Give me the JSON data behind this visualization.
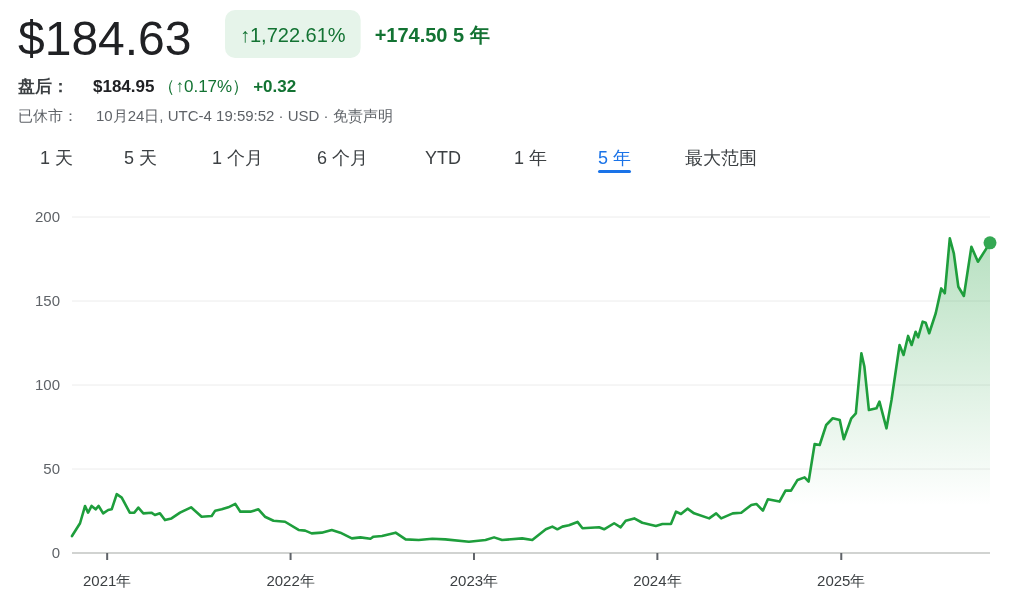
{
  "chart_data": {
    "type": "area",
    "title": "$184.63",
    "annotations": [
      "↑1,722.61%",
      "+174.50 5 年",
      "盘后：",
      "$184.95",
      "（↑0.17%）",
      "+0.32",
      "已休市：",
      "10月24日, UTC-4 19:59:52 · USD · 免责声明",
      "1 天",
      "5 天",
      "1 个月",
      "6 个月",
      "YTD",
      "1 年",
      "5 年",
      "最大范围"
    ],
    "xlim": [
      "2020-10-23",
      "2025-10-24"
    ],
    "xticks": [
      {
        "value": "2021-01-01",
        "label": "2021年"
      },
      {
        "value": "2022-01-01",
        "label": "2022年"
      },
      {
        "value": "2023-01-01",
        "label": "2023年"
      },
      {
        "value": "2024-01-01",
        "label": "2024年"
      },
      {
        "value": "2025-01-01",
        "label": "2025年"
      }
    ],
    "ylim": [
      0,
      200
    ],
    "yticks": [
      0,
      50,
      100,
      150,
      200
    ],
    "grid": "y",
    "series": [
      {
        "color": "#1e9e3c",
        "x": [
          "2020-10-23",
          "2020-11-08",
          "2020-11-18",
          "2020-11-24",
          "2020-12-01",
          "2020-12-09",
          "2020-12-15",
          "2020-12-24",
          "2021-01-03",
          "2021-01-10",
          "2021-01-20",
          "2021-01-30",
          "2021-02-15",
          "2021-02-24",
          "2021-03-04",
          "2021-03-14",
          "2021-03-30",
          "2021-04-06",
          "2021-04-16",
          "2021-04-26",
          "2021-05-09",
          "2021-05-26",
          "2021-06-17",
          "2021-07-08",
          "2021-07-28",
          "2021-08-04",
          "2021-08-17",
          "2021-08-30",
          "2021-09-13",
          "2021-09-23",
          "2021-10-13",
          "2021-10-29",
          "2021-11-11",
          "2021-11-28",
          "2021-12-21",
          "2022-01-17",
          "2022-01-30",
          "2022-02-12",
          "2022-03-04",
          "2022-03-24",
          "2022-04-10",
          "2022-05-03",
          "2022-05-20",
          "2022-06-09",
          "2022-06-15",
          "2022-07-02",
          "2022-07-29",
          "2022-08-18",
          "2022-09-13",
          "2022-10-10",
          "2022-11-05",
          "2022-12-22",
          "2023-01-24",
          "2023-02-10",
          "2023-02-26",
          "2023-04-07",
          "2023-04-27",
          "2023-05-24",
          "2023-06-06",
          "2023-06-16",
          "2023-06-26",
          "2023-07-09",
          "2023-07-26",
          "2023-08-05",
          "2023-09-07",
          "2023-09-17",
          "2023-10-07",
          "2023-10-20",
          "2023-10-30",
          "2023-11-16",
          "2023-12-02",
          "2023-12-29",
          "2024-01-11",
          "2024-01-28",
          "2024-02-07",
          "2024-02-17",
          "2024-03-01",
          "2024-03-14",
          "2024-04-13",
          "2024-04-27",
          "2024-05-07",
          "2024-05-30",
          "2024-06-16",
          "2024-07-06",
          "2024-07-16",
          "2024-07-29",
          "2024-08-08",
          "2024-08-31",
          "2024-09-12",
          "2024-09-23",
          "2024-10-06",
          "2024-10-20",
          "2024-10-28",
          "2024-11-09",
          "2024-11-19",
          "2024-12-02",
          "2024-12-15",
          "2024-12-29",
          "2025-01-06",
          "2025-01-21",
          "2025-01-30",
          "2025-02-10",
          "2025-02-16",
          "2025-02-25",
          "2025-03-12",
          "2025-03-18",
          "2025-04-01",
          "2025-04-11",
          "2025-04-27",
          "2025-05-05",
          "2025-05-14",
          "2025-05-21",
          "2025-05-29",
          "2025-06-03",
          "2025-06-12",
          "2025-06-18",
          "2025-06-25",
          "2025-07-08",
          "2025-07-19",
          "2025-07-26",
          "2025-08-05",
          "2025-08-13",
          "2025-08-22",
          "2025-09-02",
          "2025-09-17",
          "2025-09-30",
          "2025-10-24"
        ],
        "values": [
          10.1,
          17.7,
          28,
          24,
          28,
          26,
          28,
          23.6,
          25.6,
          26,
          35,
          33,
          24,
          24,
          27,
          23.6,
          24,
          22.6,
          23.6,
          19.6,
          20.6,
          24,
          27.2,
          21.6,
          22,
          25.2,
          26,
          27.2,
          29.2,
          24.6,
          24.6,
          26,
          21.6,
          19.2,
          18.6,
          13.7,
          13.3,
          11.7,
          12.1,
          13.7,
          12.1,
          8.7,
          9.3,
          8.5,
          9.7,
          10.1,
          12.1,
          8.1,
          7.7,
          8.5,
          8.1,
          6.7,
          7.7,
          9.3,
          7.7,
          8.7,
          7.7,
          14.1,
          15.7,
          14.1,
          15.7,
          16.5,
          18.5,
          14.7,
          15.3,
          14.1,
          17.7,
          15.3,
          19.2,
          20.6,
          18,
          16.1,
          17.3,
          17.3,
          24.6,
          23.2,
          26.4,
          23.6,
          20.6,
          23.6,
          20.6,
          23.6,
          24,
          28.6,
          29.2,
          25.2,
          32,
          30.6,
          37.1,
          37.1,
          43.5,
          45,
          42.5,
          64.9,
          64.3,
          76.2,
          80.2,
          79.2,
          67.7,
          80.2,
          83.1,
          118.9,
          111,
          85.1,
          86.1,
          90.1,
          74.2,
          91.1,
          123.8,
          117.9,
          129.2,
          123.8,
          131.7,
          128.4,
          137.7,
          137.1,
          130.8,
          142.7,
          157.5,
          154.6,
          187.3,
          178.4,
          158.5,
          153,
          182.3,
          173.4,
          184.6
        ]
      },
      {
        "type": "scatter",
        "color": "#34a853",
        "x": [
          "2025-10-24"
        ],
        "values": [
          184.6
        ]
      }
    ]
  }
}
